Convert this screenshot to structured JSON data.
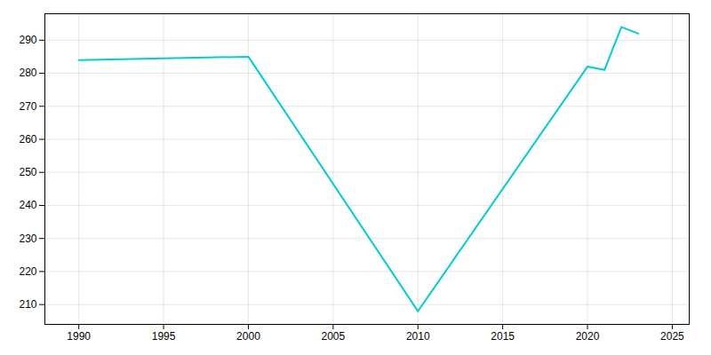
{
  "chart_data": {
    "type": "line",
    "x": [
      1990,
      2000,
      2010,
      2020,
      2021,
      2022,
      2023
    ],
    "values": [
      284,
      285,
      208,
      282,
      281,
      294,
      292
    ],
    "color": "#00CED1",
    "xlim": [
      1988,
      2026
    ],
    "ylim": [
      204,
      298
    ],
    "xticks": [
      1990,
      1995,
      2000,
      2005,
      2010,
      2015,
      2020,
      2025
    ],
    "yticks": [
      210,
      220,
      230,
      240,
      250,
      260,
      270,
      280,
      290
    ],
    "grid": true
  }
}
